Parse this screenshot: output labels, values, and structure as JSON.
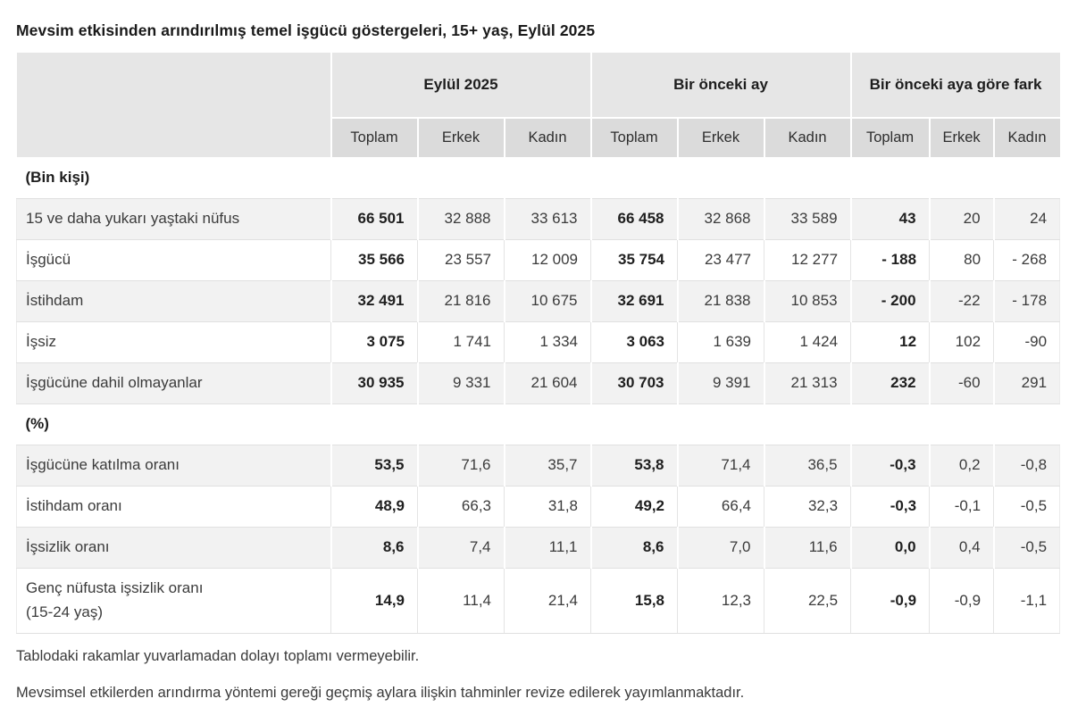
{
  "title": "Mevsim etkisinden arındırılmış temel işgücü göstergeleri, 15+ yaş, Eylül 2025",
  "table": {
    "column_groups": [
      "Eylül 2025",
      "Bir önceki ay",
      "Bir önceki aya göre fark"
    ],
    "sub_columns": [
      "Toplam",
      "Erkek",
      "Kadın"
    ],
    "sections": [
      {
        "label": "(Bin kişi)",
        "rows": [
          {
            "label": "15 ve daha yukarı yaştaki nüfus",
            "values": [
              "66 501",
              "32 888",
              "33 613",
              "66 458",
              "32 868",
              "33 589",
              "43",
              "20",
              "24"
            ]
          },
          {
            "label": "İşgücü",
            "values": [
              "35 566",
              "23 557",
              "12 009",
              "35 754",
              "23 477",
              "12 277",
              "- 188",
              "80",
              "- 268"
            ]
          },
          {
            "label": "İstihdam",
            "values": [
              "32 491",
              "21 816",
              "10 675",
              "32 691",
              "21 838",
              "10 853",
              "- 200",
              "-22",
              "- 178"
            ]
          },
          {
            "label": "İşsiz",
            "values": [
              "3 075",
              "1 741",
              "1 334",
              "3 063",
              "1 639",
              "1 424",
              "12",
              "102",
              "-90"
            ]
          },
          {
            "label": "İşgücüne dahil olmayanlar",
            "values": [
              "30 935",
              "9 331",
              "21 604",
              "30 703",
              "9 391",
              "21 313",
              "232",
              "-60",
              "291"
            ]
          }
        ]
      },
      {
        "label": "(%)",
        "rows": [
          {
            "label": "İşgücüne katılma oranı",
            "values": [
              "53,5",
              "71,6",
              "35,7",
              "53,8",
              "71,4",
              "36,5",
              "-0,3",
              "0,2",
              "-0,8"
            ]
          },
          {
            "label": "İstihdam oranı",
            "values": [
              "48,9",
              "66,3",
              "31,8",
              "49,2",
              "66,4",
              "32,3",
              "-0,3",
              "-0,1",
              "-0,5"
            ]
          },
          {
            "label": "İşsizlik oranı",
            "values": [
              "8,6",
              "7,4",
              "11,1",
              "8,6",
              "7,0",
              "11,6",
              "0,0",
              "0,4",
              "-0,5"
            ]
          },
          {
            "label": "Genç nüfusta işsizlik oranı",
            "label2": "(15-24 yaş)",
            "values": [
              "14,9",
              "11,4",
              "21,4",
              "15,8",
              "12,3",
              "22,5",
              "-0,9",
              "-0,9",
              "-1,1"
            ]
          }
        ]
      }
    ]
  },
  "notes": [
    "Tablodaki rakamlar yuvarlamadan dolayı toplamı vermeyebilir.",
    "Mevsimsel etkilerden arındırma yöntemi gereği geçmiş aylara ilişkin tahminler revize edilerek yayımlanmaktadır."
  ],
  "colors": {
    "group_header_bg": "#e6e6e6",
    "sub_header_bg": "#dbdbdb",
    "striped_row_bg": "#f2f2f2",
    "border": "#e0e0e0",
    "text": "#3b3b3b",
    "bold_text": "#1d1d1d"
  },
  "chart_data": {
    "type": "table",
    "title": "Mevsim etkisinden arındırılmış temel işgücü göstergeleri, 15+ yaş, Eylül 2025",
    "column_groups": [
      "Eylül 2025",
      "Bir önceki ay",
      "Bir önceki aya göre fark"
    ],
    "columns_per_group": [
      "Toplam",
      "Erkek",
      "Kadın"
    ],
    "rows": [
      {
        "indicator": "15 ve daha yukarı yaştaki nüfus",
        "unit": "bin kişi",
        "eylul_2025": [
          66501,
          32888,
          33613
        ],
        "onceki_ay": [
          66458,
          32868,
          33589
        ],
        "fark": [
          43,
          20,
          24
        ]
      },
      {
        "indicator": "İşgücü",
        "unit": "bin kişi",
        "eylul_2025": [
          35566,
          23557,
          12009
        ],
        "onceki_ay": [
          35754,
          23477,
          12277
        ],
        "fark": [
          -188,
          80,
          -268
        ]
      },
      {
        "indicator": "İstihdam",
        "unit": "bin kişi",
        "eylul_2025": [
          32491,
          21816,
          10675
        ],
        "onceki_ay": [
          32691,
          21838,
          10853
        ],
        "fark": [
          -200,
          -22,
          -178
        ]
      },
      {
        "indicator": "İşsiz",
        "unit": "bin kişi",
        "eylul_2025": [
          3075,
          1741,
          1334
        ],
        "onceki_ay": [
          3063,
          1639,
          1424
        ],
        "fark": [
          12,
          102,
          -90
        ]
      },
      {
        "indicator": "İşgücüne dahil olmayanlar",
        "unit": "bin kişi",
        "eylul_2025": [
          30935,
          9331,
          21604
        ],
        "onceki_ay": [
          30703,
          9391,
          21313
        ],
        "fark": [
          232,
          -60,
          291
        ]
      },
      {
        "indicator": "İşgücüne katılma oranı",
        "unit": "%",
        "eylul_2025": [
          53.5,
          71.6,
          35.7
        ],
        "onceki_ay": [
          53.8,
          71.4,
          36.5
        ],
        "fark": [
          -0.3,
          0.2,
          -0.8
        ]
      },
      {
        "indicator": "İstihdam oranı",
        "unit": "%",
        "eylul_2025": [
          48.9,
          66.3,
          31.8
        ],
        "onceki_ay": [
          49.2,
          66.4,
          32.3
        ],
        "fark": [
          -0.3,
          -0.1,
          -0.5
        ]
      },
      {
        "indicator": "İşsizlik oranı",
        "unit": "%",
        "eylul_2025": [
          8.6,
          7.4,
          11.1
        ],
        "onceki_ay": [
          8.6,
          7.0,
          11.6
        ],
        "fark": [
          0.0,
          0.4,
          -0.5
        ]
      },
      {
        "indicator": "Genç nüfusta işsizlik oranı (15-24 yaş)",
        "unit": "%",
        "eylul_2025": [
          14.9,
          11.4,
          21.4
        ],
        "onceki_ay": [
          15.8,
          12.3,
          22.5
        ],
        "fark": [
          -0.9,
          -0.9,
          -1.1
        ]
      }
    ]
  }
}
